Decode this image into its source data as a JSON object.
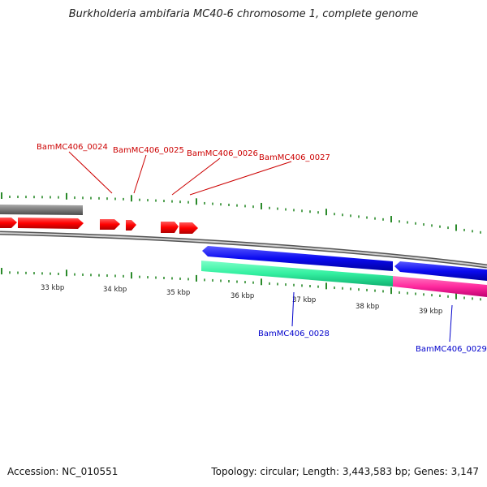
{
  "title": "Burkholderia ambifaria MC40-6 chromosome 1, complete genome",
  "footer": {
    "accession": "Accession: NC_010551",
    "summary": "Topology: circular; Length: 3,443,583 bp; Genes: 3,147"
  },
  "ruler": {
    "labels": [
      "33 kbp",
      "34 kbp",
      "35 kbp",
      "36 kbp",
      "37 kbp",
      "38 kbp",
      "39 kbp"
    ]
  },
  "genes": {
    "forward": [
      {
        "name": "BamMC406_0024",
        "color": "#ff0000"
      },
      {
        "name": "BamMC406_0025",
        "color": "#ff0000"
      },
      {
        "name": "BamMC406_0026",
        "color": "#ff0000"
      },
      {
        "name": "BamMC406_0027",
        "color": "#ff0000"
      }
    ],
    "reverse": [
      {
        "name": "BamMC406_0028",
        "color": "#1a1aff"
      },
      {
        "name": "BamMC406_0029",
        "color": "#1a1aff"
      }
    ]
  },
  "colors": {
    "forward_label": "#cc0000",
    "reverse_label": "#0000cc",
    "tick": "#2a8a2a",
    "backbone": "#888888",
    "teal": "#33f0a0",
    "magenta": "#ff2a9e",
    "gray_track": "#8a8a8a"
  }
}
